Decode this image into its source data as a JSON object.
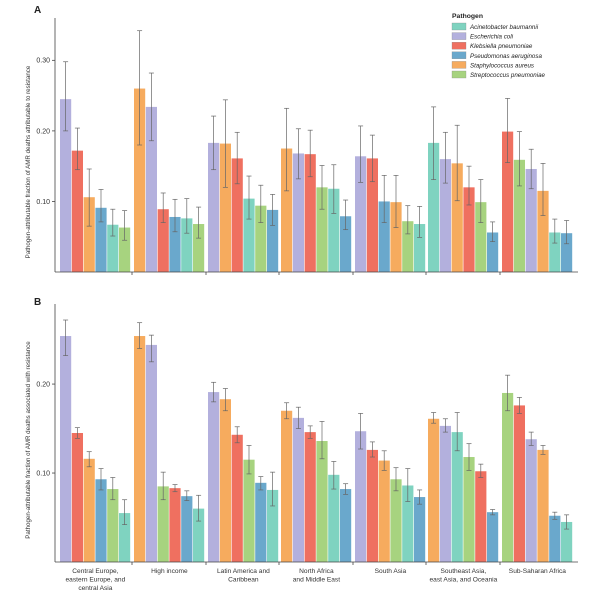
{
  "legend": {
    "title": "Pathogen",
    "entries": [
      {
        "name": "Acinetobacter baumannii",
        "color": "#7fd3c0"
      },
      {
        "name": "Escherichia coli",
        "color": "#b3b0dd"
      },
      {
        "name": "Klebsiella pneumoniae",
        "color": "#ef7060"
      },
      {
        "name": "Pseudomonas aeruginosa",
        "color": "#6aa8cc"
      },
      {
        "name": "Staphylococcus aureus",
        "color": "#f6ab5e"
      },
      {
        "name": "Streptococcus pneumoniae",
        "color": "#a7d37f"
      }
    ]
  },
  "chart_data": [
    {
      "panel": "A",
      "type": "bar",
      "ylabel": "Pathogen-attributable fraction of AMR deaths attributable to resistance",
      "ylim": [
        0,
        0.36
      ],
      "yticks": [
        "0.10",
        "0.20",
        "0.30"
      ],
      "ytick_values": [
        0.1,
        0.2,
        0.3
      ],
      "categories": [
        "Central Europe, eastern Europe, and central Asia",
        "High income",
        "Latin America and Caribbean",
        "North Africa and Middle East",
        "South Asia",
        "Southeast Asia, east Asia, and Oceania",
        "Sub-Saharan Africa"
      ],
      "groups": [
        [
          {
            "p": "Escherichia coli",
            "v": 0.245,
            "lo": 0.2,
            "hi": 0.298
          },
          {
            "p": "Klebsiella pneumoniae",
            "v": 0.172,
            "lo": 0.145,
            "hi": 0.204
          },
          {
            "p": "Staphylococcus aureus",
            "v": 0.106,
            "lo": 0.065,
            "hi": 0.146
          },
          {
            "p": "Pseudomonas aeruginosa",
            "v": 0.091,
            "lo": 0.071,
            "hi": 0.117
          },
          {
            "p": "Acinetobacter baumannii",
            "v": 0.067,
            "lo": 0.051,
            "hi": 0.089
          },
          {
            "p": "Streptococcus pneumoniae",
            "v": 0.063,
            "lo": 0.045,
            "hi": 0.087
          }
        ],
        [
          {
            "p": "Staphylococcus aureus",
            "v": 0.26,
            "lo": 0.18,
            "hi": 0.342
          },
          {
            "p": "Escherichia coli",
            "v": 0.234,
            "lo": 0.186,
            "hi": 0.282
          },
          {
            "p": "Klebsiella pneumoniae",
            "v": 0.089,
            "lo": 0.07,
            "hi": 0.112
          },
          {
            "p": "Pseudomonas aeruginosa",
            "v": 0.078,
            "lo": 0.057,
            "hi": 0.103
          },
          {
            "p": "Acinetobacter baumannii",
            "v": 0.076,
            "lo": 0.055,
            "hi": 0.104
          },
          {
            "p": "Streptococcus pneumoniae",
            "v": 0.068,
            "lo": 0.048,
            "hi": 0.092
          }
        ],
        [
          {
            "p": "Escherichia coli",
            "v": 0.183,
            "lo": 0.145,
            "hi": 0.221
          },
          {
            "p": "Staphylococcus aureus",
            "v": 0.182,
            "lo": 0.12,
            "hi": 0.244
          },
          {
            "p": "Klebsiella pneumoniae",
            "v": 0.161,
            "lo": 0.125,
            "hi": 0.198
          },
          {
            "p": "Acinetobacter baumannii",
            "v": 0.104,
            "lo": 0.075,
            "hi": 0.136
          },
          {
            "p": "Streptococcus pneumoniae",
            "v": 0.094,
            "lo": 0.07,
            "hi": 0.123
          },
          {
            "p": "Pseudomonas aeruginosa",
            "v": 0.088,
            "lo": 0.066,
            "hi": 0.11
          }
        ],
        [
          {
            "p": "Staphylococcus aureus",
            "v": 0.175,
            "lo": 0.115,
            "hi": 0.232
          },
          {
            "p": "Escherichia coli",
            "v": 0.168,
            "lo": 0.132,
            "hi": 0.203
          },
          {
            "p": "Klebsiella pneumoniae",
            "v": 0.167,
            "lo": 0.135,
            "hi": 0.201
          },
          {
            "p": "Streptococcus pneumoniae",
            "v": 0.12,
            "lo": 0.089,
            "hi": 0.151
          },
          {
            "p": "Acinetobacter baumannii",
            "v": 0.118,
            "lo": 0.083,
            "hi": 0.152
          },
          {
            "p": "Pseudomonas aeruginosa",
            "v": 0.079,
            "lo": 0.06,
            "hi": 0.102
          }
        ],
        [
          {
            "p": "Escherichia coli",
            "v": 0.164,
            "lo": 0.127,
            "hi": 0.207
          },
          {
            "p": "Klebsiella pneumoniae",
            "v": 0.161,
            "lo": 0.128,
            "hi": 0.194
          },
          {
            "p": "Pseudomonas aeruginosa",
            "v": 0.1,
            "lo": 0.07,
            "hi": 0.137
          },
          {
            "p": "Staphylococcus aureus",
            "v": 0.099,
            "lo": 0.063,
            "hi": 0.137
          },
          {
            "p": "Streptococcus pneumoniae",
            "v": 0.072,
            "lo": 0.054,
            "hi": 0.094
          },
          {
            "p": "Acinetobacter baumannii",
            "v": 0.068,
            "lo": 0.049,
            "hi": 0.093
          }
        ],
        [
          {
            "p": "Acinetobacter baumannii",
            "v": 0.183,
            "lo": 0.131,
            "hi": 0.234
          },
          {
            "p": "Escherichia coli",
            "v": 0.16,
            "lo": 0.126,
            "hi": 0.198
          },
          {
            "p": "Staphylococcus aureus",
            "v": 0.154,
            "lo": 0.101,
            "hi": 0.208
          },
          {
            "p": "Klebsiella pneumoniae",
            "v": 0.12,
            "lo": 0.095,
            "hi": 0.15
          },
          {
            "p": "Streptococcus pneumoniae",
            "v": 0.099,
            "lo": 0.07,
            "hi": 0.131
          },
          {
            "p": "Pseudomonas aeruginosa",
            "v": 0.056,
            "lo": 0.043,
            "hi": 0.071
          }
        ],
        [
          {
            "p": "Klebsiella pneumoniae",
            "v": 0.199,
            "lo": 0.155,
            "hi": 0.246
          },
          {
            "p": "Streptococcus pneumoniae",
            "v": 0.159,
            "lo": 0.122,
            "hi": 0.199
          },
          {
            "p": "Escherichia coli",
            "v": 0.146,
            "lo": 0.118,
            "hi": 0.174
          },
          {
            "p": "Staphylococcus aureus",
            "v": 0.115,
            "lo": 0.08,
            "hi": 0.154
          },
          {
            "p": "Acinetobacter baumannii",
            "v": 0.056,
            "lo": 0.041,
            "hi": 0.075
          },
          {
            "p": "Pseudomonas aeruginosa",
            "v": 0.055,
            "lo": 0.04,
            "hi": 0.073
          }
        ]
      ]
    },
    {
      "panel": "B",
      "type": "bar",
      "ylabel": "Pathogen-attributable fraction of AMR deaths associated with resistance",
      "ylim": [
        0,
        0.29
      ],
      "yticks": [
        "0.10",
        "0.20"
      ],
      "ytick_values": [
        0.1,
        0.2
      ],
      "categories": [
        "Central Europe, eastern Europe, and central Asia",
        "High income",
        "Latin America and Caribbean",
        "North Africa and Middle East",
        "South Asia",
        "Southeast Asia, east Asia, and Oceania",
        "Sub-Saharan Africa"
      ],
      "groups": [
        [
          {
            "p": "Escherichia coli",
            "v": 0.254,
            "lo": 0.232,
            "hi": 0.272
          },
          {
            "p": "Klebsiella pneumoniae",
            "v": 0.145,
            "lo": 0.139,
            "hi": 0.151
          },
          {
            "p": "Staphylococcus aureus",
            "v": 0.116,
            "lo": 0.107,
            "hi": 0.124
          },
          {
            "p": "Pseudomonas aeruginosa",
            "v": 0.093,
            "lo": 0.081,
            "hi": 0.105
          },
          {
            "p": "Streptococcus pneumoniae",
            "v": 0.082,
            "lo": 0.07,
            "hi": 0.095
          },
          {
            "p": "Acinetobacter baumannii",
            "v": 0.055,
            "lo": 0.042,
            "hi": 0.07
          }
        ],
        [
          {
            "p": "Staphylococcus aureus",
            "v": 0.254,
            "lo": 0.24,
            "hi": 0.269
          },
          {
            "p": "Escherichia coli",
            "v": 0.244,
            "lo": 0.225,
            "hi": 0.255
          },
          {
            "p": "Streptococcus pneumoniae",
            "v": 0.085,
            "lo": 0.07,
            "hi": 0.101
          },
          {
            "p": "Klebsiella pneumoniae",
            "v": 0.083,
            "lo": 0.079,
            "hi": 0.087
          },
          {
            "p": "Pseudomonas aeruginosa",
            "v": 0.074,
            "lo": 0.069,
            "hi": 0.08
          },
          {
            "p": "Acinetobacter baumannii",
            "v": 0.06,
            "lo": 0.046,
            "hi": 0.075
          }
        ],
        [
          {
            "p": "Escherichia coli",
            "v": 0.191,
            "lo": 0.18,
            "hi": 0.202
          },
          {
            "p": "Staphylococcus aureus",
            "v": 0.183,
            "lo": 0.17,
            "hi": 0.195
          },
          {
            "p": "Klebsiella pneumoniae",
            "v": 0.143,
            "lo": 0.134,
            "hi": 0.152
          },
          {
            "p": "Streptococcus pneumoniae",
            "v": 0.115,
            "lo": 0.099,
            "hi": 0.131
          },
          {
            "p": "Pseudomonas aeruginosa",
            "v": 0.089,
            "lo": 0.081,
            "hi": 0.096
          },
          {
            "p": "Acinetobacter baumannii",
            "v": 0.081,
            "lo": 0.063,
            "hi": 0.101
          }
        ],
        [
          {
            "p": "Staphylococcus aureus",
            "v": 0.17,
            "lo": 0.161,
            "hi": 0.179
          },
          {
            "p": "Escherichia coli",
            "v": 0.162,
            "lo": 0.15,
            "hi": 0.174
          },
          {
            "p": "Klebsiella pneumoniae",
            "v": 0.146,
            "lo": 0.139,
            "hi": 0.153
          },
          {
            "p": "Streptococcus pneumoniae",
            "v": 0.136,
            "lo": 0.116,
            "hi": 0.158
          },
          {
            "p": "Acinetobacter baumannii",
            "v": 0.098,
            "lo": 0.082,
            "hi": 0.113
          },
          {
            "p": "Pseudomonas aeruginosa",
            "v": 0.082,
            "lo": 0.076,
            "hi": 0.088
          }
        ],
        [
          {
            "p": "Escherichia coli",
            "v": 0.147,
            "lo": 0.127,
            "hi": 0.167
          },
          {
            "p": "Klebsiella pneumoniae",
            "v": 0.126,
            "lo": 0.118,
            "hi": 0.135
          },
          {
            "p": "Staphylococcus aureus",
            "v": 0.114,
            "lo": 0.103,
            "hi": 0.125
          },
          {
            "p": "Streptococcus pneumoniae",
            "v": 0.093,
            "lo": 0.08,
            "hi": 0.106
          },
          {
            "p": "Acinetobacter baumannii",
            "v": 0.086,
            "lo": 0.068,
            "hi": 0.105
          },
          {
            "p": "Pseudomonas aeruginosa",
            "v": 0.073,
            "lo": 0.065,
            "hi": 0.081
          }
        ],
        [
          {
            "p": "Staphylococcus aureus",
            "v": 0.161,
            "lo": 0.156,
            "hi": 0.168
          },
          {
            "p": "Escherichia coli",
            "v": 0.153,
            "lo": 0.146,
            "hi": 0.161
          },
          {
            "p": "Acinetobacter baumannii",
            "v": 0.146,
            "lo": 0.125,
            "hi": 0.168
          },
          {
            "p": "Streptococcus pneumoniae",
            "v": 0.118,
            "lo": 0.103,
            "hi": 0.133
          },
          {
            "p": "Klebsiella pneumoniae",
            "v": 0.102,
            "lo": 0.095,
            "hi": 0.11
          },
          {
            "p": "Pseudomonas aeruginosa",
            "v": 0.056,
            "lo": 0.053,
            "hi": 0.059
          }
        ],
        [
          {
            "p": "Streptococcus pneumoniae",
            "v": 0.19,
            "lo": 0.17,
            "hi": 0.21
          },
          {
            "p": "Klebsiella pneumoniae",
            "v": 0.176,
            "lo": 0.167,
            "hi": 0.185
          },
          {
            "p": "Escherichia coli",
            "v": 0.138,
            "lo": 0.131,
            "hi": 0.146
          },
          {
            "p": "Staphylococcus aureus",
            "v": 0.126,
            "lo": 0.121,
            "hi": 0.131
          },
          {
            "p": "Pseudomonas aeruginosa",
            "v": 0.052,
            "lo": 0.048,
            "hi": 0.056
          },
          {
            "p": "Acinetobacter baumannii",
            "v": 0.045,
            "lo": 0.037,
            "hi": 0.053
          }
        ]
      ]
    }
  ],
  "x_labels": [
    [
      "Central Europe,",
      "eastern Europe, and",
      "central Asia"
    ],
    [
      "High income"
    ],
    [
      "Latin America and",
      "Caribbean"
    ],
    [
      "North Africa",
      "and Middle East"
    ],
    [
      "South Asia"
    ],
    [
      "Southeast Asia,",
      "east Asia, and Oceania"
    ],
    [
      "Sub-Saharan Africa"
    ]
  ]
}
